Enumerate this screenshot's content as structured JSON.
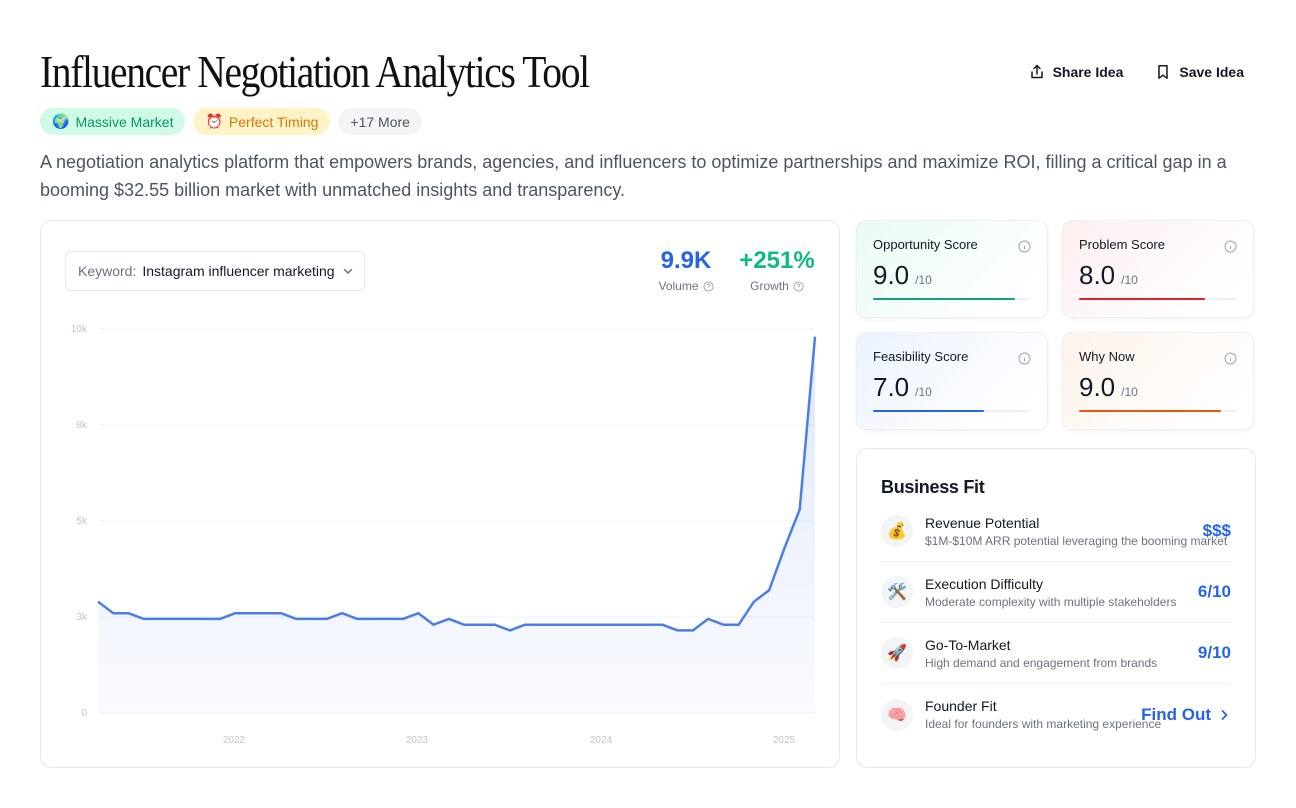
{
  "header": {
    "title": "Influencer Negotiation Analytics Tool",
    "share_label": "Share Idea",
    "save_label": "Save Idea"
  },
  "tags": [
    {
      "icon": "globe-icon",
      "emoji": "🌍",
      "label": "Massive Market"
    },
    {
      "icon": "clock-icon",
      "emoji": "⏰",
      "label": "Perfect Timing"
    },
    {
      "label": "+17 More"
    }
  ],
  "description": "A negotiation analytics platform that empowers brands, agencies, and influencers to optimize partnerships and maximize ROI, filling a critical gap in a booming $32.55 billion market with unmatched insights and transparency.",
  "keyword": {
    "label": "Keyword:",
    "value": "Instagram influencer marketing"
  },
  "metrics": {
    "volume": {
      "value": "9.9K",
      "label": "Volume",
      "color": "#2563eb"
    },
    "growth": {
      "value": "+251%",
      "label": "Growth",
      "color": "#10b981"
    }
  },
  "chart_data": {
    "type": "area",
    "series": [
      {
        "values": [
          2900,
          2600,
          2600,
          2450,
          2450,
          2450,
          2450,
          2450,
          2450,
          2600,
          2600,
          2600,
          2600,
          2450,
          2450,
          2450,
          2600,
          2450,
          2450,
          2450,
          2450,
          2600,
          2300,
          2450,
          2300,
          2300,
          2300,
          2150,
          2300,
          2300,
          2300,
          2300,
          2300,
          2300,
          2300,
          2300,
          2300,
          2300,
          2150,
          2150,
          2450,
          2300,
          2300,
          2900,
          3200,
          4300,
          5300,
          9800
        ]
      }
    ],
    "x_ticks": [
      "2022",
      "2023",
      "2024",
      "2025"
    ],
    "y_ticks": [
      "10k",
      "8k",
      "5k",
      "3k",
      "0"
    ],
    "ylim": [
      0,
      10000
    ],
    "grid": true,
    "line_color": "#4c7ee8"
  },
  "scores": [
    {
      "label": "Opportunity Score",
      "value": "9.0",
      "max": "/10",
      "fraction": 0.9,
      "color": "#10a37f",
      "bg": "#e9fbf2"
    },
    {
      "label": "Problem Score",
      "value": "8.0",
      "max": "/10",
      "fraction": 0.8,
      "color": "#dc2626",
      "bg": "#fdeff0"
    },
    {
      "label": "Feasibility Score",
      "value": "7.0",
      "max": "/10",
      "fraction": 0.7,
      "color": "#2563eb",
      "bg": "#ecf3fe"
    },
    {
      "label": "Why Now",
      "value": "9.0",
      "max": "/10",
      "fraction": 0.9,
      "color": "#ea580c",
      "bg": "#fdf3ea"
    }
  ],
  "business_fit": {
    "title": "Business Fit",
    "rows": [
      {
        "icon": "money-bag-icon",
        "emoji": "💰",
        "name": "Revenue Potential",
        "sub": "$1M-$10M ARR potential leveraging the booming market",
        "value": "$$$"
      },
      {
        "icon": "tools-icon",
        "emoji": "🛠️",
        "name": "Execution Difficulty",
        "sub": "Moderate complexity with multiple stakeholders",
        "value": "6/10"
      },
      {
        "icon": "rocket-icon",
        "emoji": "🚀",
        "name": "Go-To-Market",
        "sub": "High demand and engagement from brands",
        "value": "9/10"
      },
      {
        "icon": "brain-icon",
        "emoji": "🧠",
        "name": "Founder Fit",
        "sub": "Ideal for founders with marketing experience",
        "value": "Find Out"
      }
    ]
  }
}
